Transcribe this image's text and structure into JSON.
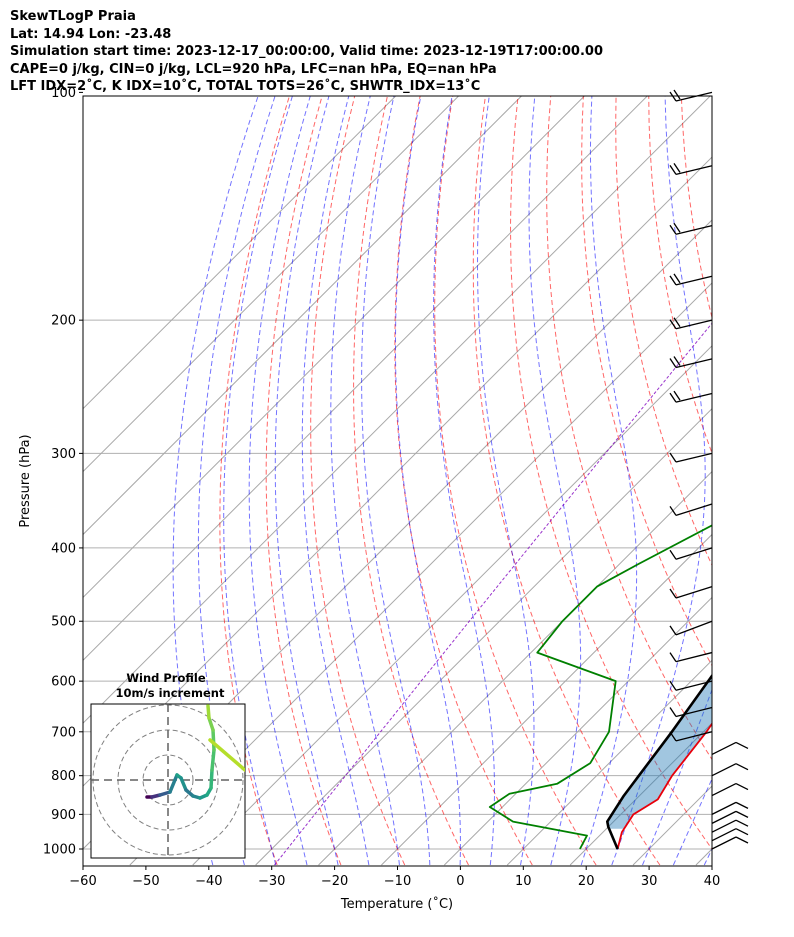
{
  "header": {
    "lines": [
      "SkewTLogP Praia",
      "Lat: 14.94   Lon: -23.48",
      "Simulation start time: 2023-12-17_00:00:00, Valid time: 2023-12-19T17:00:00.00",
      "CAPE=0 j/kg, CIN=0 j/kg, LCL=920 hPa, LFC=nan hPa, EQ=nan hPa",
      "LFT IDX=2˚C, K IDX=10˚C, TOTAL TOTS=26˚C, SHWTR_IDX=13˚C"
    ]
  },
  "chart_data": {
    "type": "skewt-logp",
    "xlabel": "Temperature (˚C)",
    "ylabel": "Pressure (hPa)",
    "xlim": [
      -60,
      40
    ],
    "ylim": [
      1050,
      100
    ],
    "x_ticks": [
      "−60",
      "−50",
      "−40",
      "−30",
      "−20",
      "−10",
      "0",
      "10",
      "20",
      "30",
      "40"
    ],
    "y_ticks": [
      "100",
      "200",
      "300",
      "400",
      "500",
      "600",
      "700",
      "800",
      "900",
      "1000"
    ],
    "grid": true,
    "series": [
      {
        "key": "temperature",
        "color": "#e8000b",
        "points": [
          [
            25,
            1000
          ],
          [
            23,
            950
          ],
          [
            22,
            900
          ],
          [
            23.5,
            860
          ],
          [
            22,
            800
          ],
          [
            20.5,
            700
          ],
          [
            18,
            600
          ],
          [
            14,
            500
          ],
          [
            9,
            420
          ],
          [
            6,
            370
          ],
          [
            5,
            350
          ],
          [
            4,
            330
          ],
          [
            2,
            290
          ],
          [
            -2,
            250
          ],
          [
            -6,
            220
          ],
          [
            -8,
            198
          ],
          [
            -8,
            185
          ],
          [
            -5,
            172
          ],
          [
            -5,
            160
          ],
          [
            -2,
            130
          ],
          [
            1,
            118
          ],
          [
            2,
            105
          ],
          [
            2,
            100
          ]
        ]
      },
      {
        "key": "dewpoint",
        "color": "#008000",
        "points": [
          [
            19,
            1000
          ],
          [
            18,
            960
          ],
          [
            4,
            920
          ],
          [
            -2,
            880
          ],
          [
            -1,
            845
          ],
          [
            5,
            820
          ],
          [
            7,
            770
          ],
          [
            5,
            700
          ],
          [
            -2,
            600
          ],
          [
            -19,
            550
          ],
          [
            -20,
            500
          ],
          [
            -20,
            450
          ],
          [
            -17,
            420
          ],
          [
            -11,
            370
          ],
          [
            -9,
            350
          ],
          [
            -10,
            320
          ],
          [
            -13,
            280
          ],
          [
            -18,
            250
          ],
          [
            -30,
            197
          ],
          [
            -32,
            180
          ],
          [
            -35,
            168
          ],
          [
            -34,
            160
          ],
          [
            -33,
            150
          ],
          [
            -35,
            130
          ],
          [
            -34,
            115
          ],
          [
            -30,
            105
          ],
          [
            -29,
            100
          ]
        ]
      },
      {
        "key": "parcel",
        "color": "#000000",
        "points": [
          [
            25,
            1000
          ],
          [
            20,
            935
          ],
          [
            19,
            920
          ],
          [
            17.5,
            850
          ],
          [
            15,
            700
          ],
          [
            10,
            500
          ],
          [
            4,
            400
          ],
          [
            -1,
            350
          ],
          [
            -8,
            300
          ],
          [
            -18,
            250
          ],
          [
            -32,
            200
          ],
          [
            -46,
            160
          ],
          [
            -58,
            130
          ],
          [
            -72,
            100
          ]
        ]
      }
    ],
    "wind_barbs_pressure_hPa": [
      1000,
      975,
      950,
      925,
      900,
      850,
      800,
      750,
      700,
      650,
      600,
      550,
      500,
      450,
      400,
      350,
      300,
      250,
      225,
      200,
      175,
      150,
      125,
      100
    ],
    "inset": {
      "title": "Wind Profile",
      "subtitle": "10m/s increment"
    }
  }
}
